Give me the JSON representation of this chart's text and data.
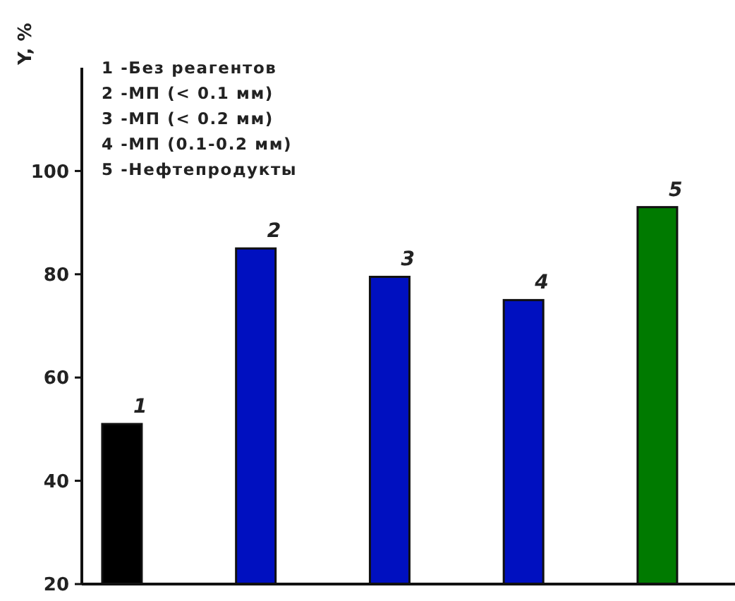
{
  "chart_data": {
    "type": "bar",
    "ylabel": "Y, %",
    "categories": [
      "1",
      "2",
      "3",
      "4",
      "5"
    ],
    "values": [
      51,
      85,
      79.5,
      75,
      93
    ],
    "colors": [
      "#000000",
      "#0010c0",
      "#0010c0",
      "#0010c0",
      "#007a00"
    ],
    "ylim": [
      20,
      120
    ],
    "yticks": [
      20,
      40,
      60,
      80,
      100
    ],
    "annotations": [
      "1 -Без реагентов",
      "2 -МП (< 0.1 мм)",
      "3 -МП (< 0.2 мм)",
      "4 -МП (0.1-0.2 мм)",
      "5 -Нефтепродукты"
    ],
    "grid": false
  }
}
